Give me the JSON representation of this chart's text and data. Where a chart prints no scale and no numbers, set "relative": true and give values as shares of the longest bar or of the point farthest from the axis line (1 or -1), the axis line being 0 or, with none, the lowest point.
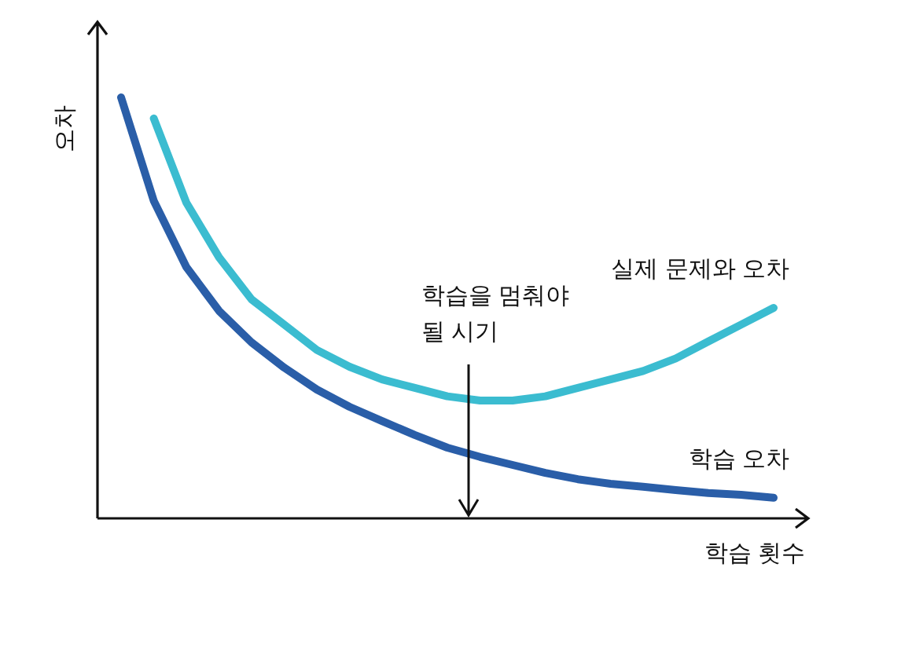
{
  "chart_data": {
    "type": "line",
    "relative": true,
    "legend": false,
    "xlabel": "학습 횟수",
    "ylabel": "오차",
    "categories": [
      null,
      null,
      null,
      null,
      null,
      null,
      null,
      null,
      null,
      null,
      null,
      null,
      null,
      null,
      null,
      null,
      null,
      null,
      null,
      null,
      null
    ],
    "series": [
      {
        "name": "실제 문제와 오차",
        "color": "#3bbcd0",
        "values": [
          null,
          0.95,
          0.75,
          0.62,
          0.52,
          0.46,
          0.4,
          0.36,
          0.33,
          0.31,
          0.29,
          0.28,
          0.28,
          0.29,
          0.31,
          0.33,
          0.35,
          0.38,
          0.42,
          0.46,
          0.5
        ]
      },
      {
        "name": "학습 오차",
        "color": "#2a5ea8",
        "values": [
          1.0,
          0.754,
          0.597,
          0.493,
          0.418,
          0.358,
          0.306,
          0.265,
          0.231,
          0.198,
          0.168,
          0.146,
          0.127,
          0.108,
          0.093,
          0.082,
          0.075,
          0.067,
          0.06,
          0.056,
          0.049
        ]
      }
    ],
    "annotations": [
      "학습을 멈춰야\n될 시기"
    ]
  }
}
